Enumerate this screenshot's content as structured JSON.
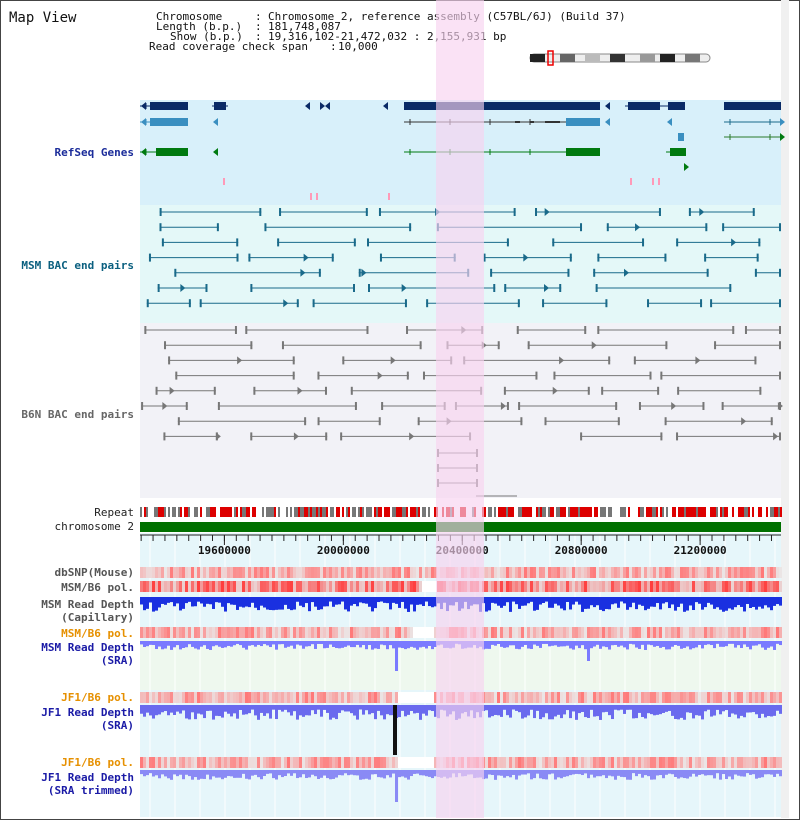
{
  "app": {
    "title": "Map View"
  },
  "info": {
    "chromosome_key": "Chromosome",
    "chromosome_value": "Chromosome 2, reference assembly (C57BL/6J) (Build 37)",
    "length_key": "Length (b.p.)",
    "length_value": "181,748,087",
    "show_key": "Show (b.p.)",
    "show_value": "19,316,102-21,472,032 : 2,155,931 bp",
    "coverage_key": "Read coverage check span",
    "coverage_value": "10,000"
  },
  "tracks": {
    "refseq": "RefSeq Genes",
    "msm_bac": "MSM BAC end pairs",
    "b6n_bac": "B6N BAC end pairs",
    "repeat": "Repeat",
    "chromosome": "chromosome 2",
    "dbsnp": "dbSNP(Mouse)",
    "msm_b6_pol": "MSM/B6 pol.",
    "msm_read_depth_cap_1": "MSM Read Depth",
    "msm_read_depth_cap_2": "(Capillary)",
    "msm_b6_pol_sra": "MSM/B6 pol.",
    "msm_read_depth_sra_1": "MSM Read Depth",
    "msm_read_depth_sra_2": "(SRA)",
    "jf1_b6_pol": "JF1/B6 pol.",
    "jf1_read_depth_sra_1": "JF1 Read Depth",
    "jf1_read_depth_sra_2": "(SRA)",
    "jf1_b6_pol_trim": "JF1/B6 pol.",
    "jf1_read_depth_trim_1": "JF1 Read Depth",
    "jf1_read_depth_trim_2": "(SRA trimmed)"
  },
  "axis": {
    "ticks": [
      "19600000",
      "20000000",
      "20400000",
      "20800000",
      "21200000"
    ],
    "range": [
      19316102,
      21472032
    ]
  },
  "colors": {
    "highlight": "#f8d3f0",
    "refseq_bg": "#d8f0fa",
    "msm_bac_bg": "#e4f8f8",
    "b6n_bac_bg": "#f2f2f7",
    "chromosome_green": "#007000",
    "gene_dark": "#0a2a66",
    "gene_mid": "#3a8fc0",
    "gene_green": "#007a10",
    "msm_line": "#1a6a8a",
    "b6n_line": "#777777"
  },
  "icons": {
    "ideogram": "chromosome-ideogram-icon"
  }
}
